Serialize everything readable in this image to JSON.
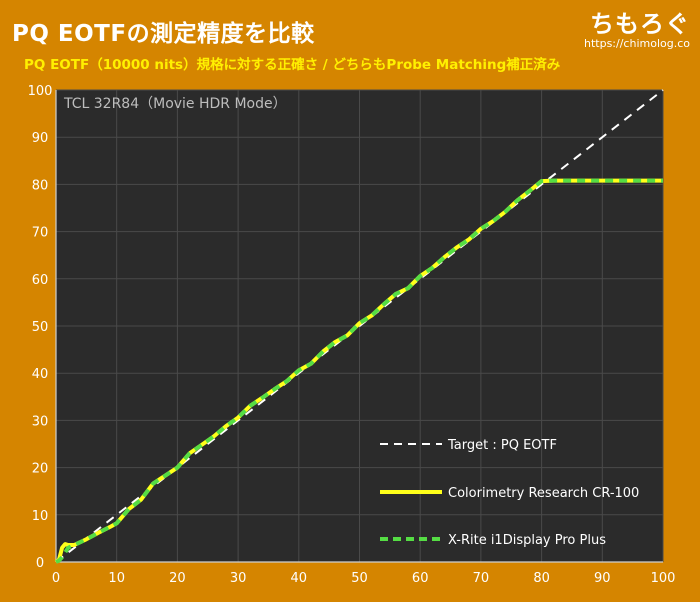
{
  "header": {
    "title": "PQ EOTFの測定精度を比較",
    "subtitle": "PQ EOTF（10000 nits）規格に対する正確さ / どちらもProbe Matching補正済み"
  },
  "brand": {
    "name": "ちもろぐ",
    "url": "https://chimolog.co"
  },
  "colors": {
    "background": "#d58500",
    "plot_bg": "#2b2b2b",
    "grid": "#4a4a4a",
    "target": "#ffffff",
    "cr100": "#ffff1a",
    "i1display": "#55dd44"
  },
  "chart_data": {
    "type": "line",
    "title": "TCL 32R84（Movie HDR Mode）",
    "xlabel": "",
    "ylabel": "",
    "xlim": [
      0,
      100
    ],
    "ylim": [
      0,
      100
    ],
    "xticks": [
      0,
      10,
      20,
      30,
      40,
      50,
      60,
      70,
      80,
      90,
      100
    ],
    "yticks": [
      0,
      10,
      20,
      30,
      40,
      50,
      60,
      70,
      80,
      90,
      100
    ],
    "grid": true,
    "legend_position": "bottom-right",
    "series": [
      {
        "name": "Target : PQ EOTF",
        "style": "dashed",
        "color": "#ffffff",
        "x": [
          0,
          100
        ],
        "y": [
          0,
          100
        ]
      },
      {
        "name": "Colorimetry Research CR-100",
        "style": "solid",
        "color": "#ffff1a",
        "x": [
          0,
          0.5,
          1,
          1.5,
          2,
          3,
          5,
          7,
          9,
          10,
          12,
          14,
          16,
          18,
          20,
          22,
          24,
          26,
          28,
          30,
          32,
          34,
          36,
          38,
          40,
          42,
          44,
          46,
          48,
          50,
          52,
          54,
          56,
          58,
          60,
          62,
          64,
          66,
          68,
          70,
          72,
          74,
          76,
          78,
          80,
          82,
          84,
          86,
          88,
          90,
          92,
          94,
          96,
          98,
          100
        ],
        "y": [
          0,
          0.5,
          3,
          3.8,
          3.6,
          3.6,
          4.8,
          6.2,
          7.5,
          8.2,
          11.2,
          13.2,
          16.6,
          18.3,
          20.0,
          23.0,
          24.8,
          26.6,
          28.8,
          30.6,
          33.1,
          34.8,
          36.6,
          38.3,
          40.6,
          42.0,
          44.6,
          46.6,
          48.0,
          50.6,
          52.2,
          54.6,
          56.8,
          58.0,
          60.6,
          62.3,
          64.6,
          66.6,
          68.3,
          70.6,
          72.2,
          74.2,
          76.6,
          78.6,
          80.7,
          80.8,
          80.8,
          80.8,
          80.8,
          80.8,
          80.8,
          80.8,
          80.8,
          80.8,
          80.8
        ]
      },
      {
        "name": "X-Rite i1Display Pro Plus",
        "style": "dashed",
        "color": "#55dd44",
        "x": [
          0,
          0.5,
          1,
          1.5,
          2,
          3,
          5,
          7,
          9,
          10,
          12,
          14,
          16,
          18,
          20,
          22,
          24,
          26,
          28,
          30,
          32,
          34,
          36,
          38,
          40,
          42,
          44,
          46,
          48,
          50,
          52,
          54,
          56,
          58,
          60,
          62,
          64,
          66,
          68,
          70,
          72,
          74,
          76,
          78,
          80,
          82,
          84,
          86,
          88,
          90,
          92,
          94,
          96,
          98,
          100
        ],
        "y": [
          0,
          0.3,
          1.0,
          2.0,
          3.0,
          3.6,
          4.8,
          6.2,
          7.5,
          8.2,
          11.2,
          13.2,
          16.6,
          18.3,
          20.0,
          23.0,
          24.8,
          26.6,
          28.8,
          30.6,
          33.1,
          34.8,
          36.6,
          38.3,
          40.6,
          42.0,
          44.6,
          46.6,
          48.0,
          50.6,
          52.2,
          54.6,
          56.8,
          58.0,
          60.6,
          62.3,
          64.6,
          66.6,
          68.3,
          70.6,
          72.2,
          74.2,
          76.6,
          78.6,
          80.7,
          80.8,
          80.8,
          80.8,
          80.8,
          80.8,
          80.8,
          80.8,
          80.8,
          80.8,
          80.8
        ]
      }
    ]
  }
}
